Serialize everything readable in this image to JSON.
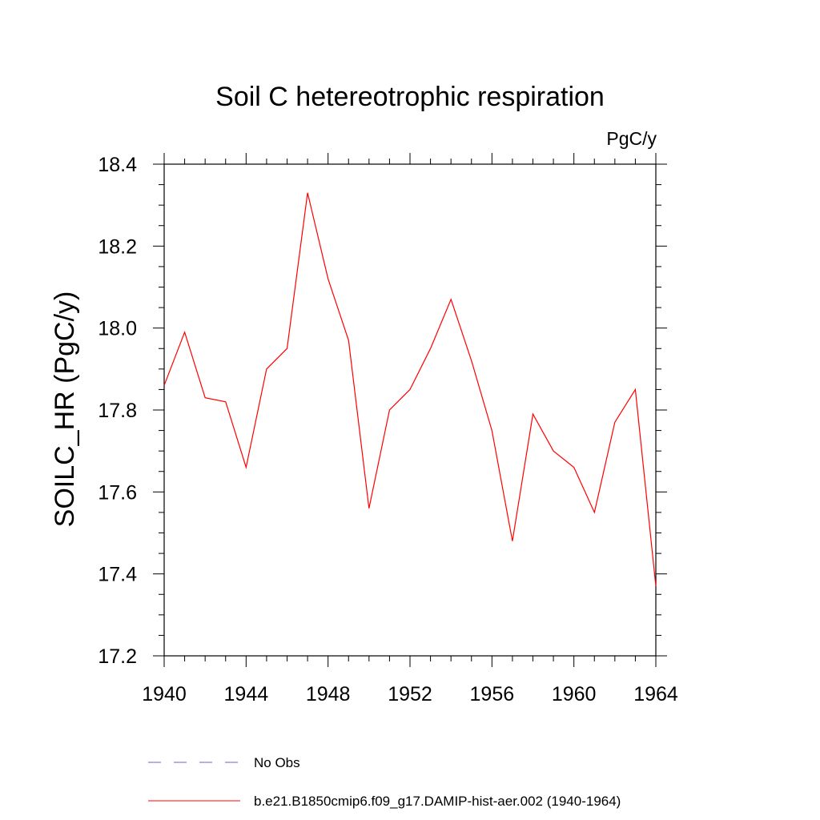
{
  "chart_data": {
    "type": "line",
    "title": "Soil C hetereotrophic respiration",
    "units": "PgC/y",
    "xlabel": "",
    "ylabel": "SOILC_HR  (PgC/y)",
    "xlim": [
      1940,
      1964
    ],
    "ylim": [
      17.2,
      18.4
    ],
    "x_ticks": [
      "1940",
      "1944",
      "1948",
      "1952",
      "1956",
      "1960",
      "1964"
    ],
    "y_ticks": [
      "17.2",
      "17.4",
      "17.6",
      "17.8",
      "18.0",
      "18.2",
      "18.4"
    ],
    "grid": false,
    "legend_position": "bottom",
    "series": [
      {
        "name": "b.e21.B1850cmip6.f09_g17.DAMIP-hist-aer.002 (1940-1964)",
        "color": "#ff0000",
        "style": "solid",
        "x": [
          1940,
          1941,
          1942,
          1943,
          1944,
          1945,
          1946,
          1947,
          1948,
          1949,
          1950,
          1951,
          1952,
          1953,
          1954,
          1955,
          1956,
          1957,
          1958,
          1959,
          1960,
          1961,
          1962,
          1963,
          1964
        ],
        "values": [
          17.86,
          17.99,
          17.83,
          17.82,
          17.66,
          17.9,
          17.95,
          18.33,
          18.12,
          17.97,
          17.56,
          17.8,
          17.85,
          17.95,
          18.07,
          17.92,
          17.75,
          17.48,
          17.79,
          17.7,
          17.66,
          17.55,
          17.77,
          17.85,
          17.37
        ]
      }
    ],
    "legend": [
      {
        "label": "No Obs",
        "color": "#6666cc",
        "style": "dashed"
      },
      {
        "label": "b.e21.B1850cmip6.f09_g17.DAMIP-hist-aer.002 (1940-1964)",
        "color": "#ff0000",
        "style": "solid"
      }
    ]
  }
}
